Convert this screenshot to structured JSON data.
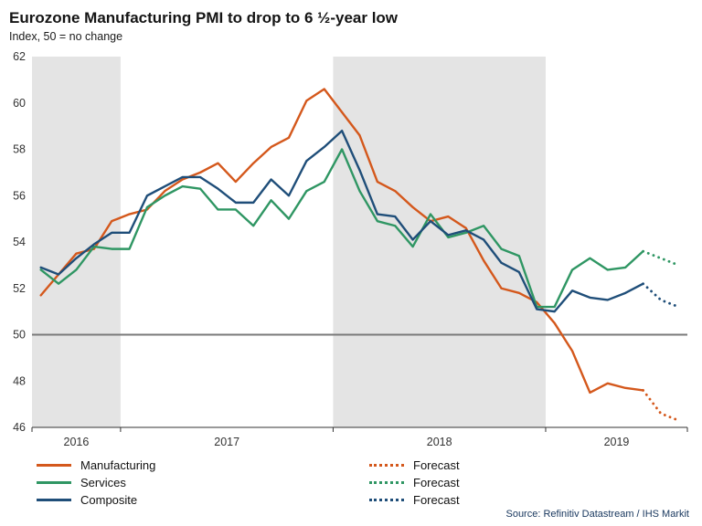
{
  "chart_data": {
    "type": "line",
    "title": "Eurozone Manufacturing PMI to drop to 6 ½-year low",
    "subtitle": "Index, 50 = no change",
    "ylim": [
      46,
      62
    ],
    "yticks": [
      46,
      48,
      50,
      52,
      54,
      56,
      58,
      60,
      62
    ],
    "reference_line": 50,
    "x_start": "2016-08",
    "x_frequency": "monthly",
    "band_color": "#e4e4e4",
    "years": [
      {
        "label": "2016",
        "months": 5,
        "shaded": true
      },
      {
        "label": "2017",
        "months": 12,
        "shaded": false
      },
      {
        "label": "2018",
        "months": 12,
        "shaded": true
      },
      {
        "label": "2019",
        "months": 8,
        "shaded": false
      }
    ],
    "series": [
      {
        "name": "Manufacturing",
        "color": "#d4581c",
        "values": [
          51.7,
          52.6,
          53.5,
          53.7,
          54.9,
          55.2,
          55.4,
          56.2,
          56.7,
          57.0,
          57.4,
          56.6,
          57.4,
          58.1,
          58.5,
          60.1,
          60.6,
          59.6,
          58.6,
          56.6,
          56.2,
          55.5,
          54.9,
          55.1,
          54.6,
          53.2,
          52.0,
          51.8,
          51.4,
          50.5,
          49.3,
          47.5,
          47.9,
          47.7,
          47.6
        ],
        "forecast": [
          46.6,
          46.3
        ]
      },
      {
        "name": "Services",
        "color": "#2f9663",
        "values": [
          52.8,
          52.2,
          52.8,
          53.8,
          53.7,
          53.7,
          55.5,
          56.0,
          56.4,
          56.3,
          55.4,
          55.4,
          54.7,
          55.8,
          55.0,
          56.2,
          56.6,
          58.0,
          56.2,
          54.9,
          54.7,
          53.8,
          55.2,
          54.2,
          54.4,
          54.7,
          53.7,
          53.4,
          51.2,
          51.2,
          52.8,
          53.3,
          52.8,
          52.9,
          53.6
        ],
        "forecast": [
          53.3,
          53.0
        ]
      },
      {
        "name": "Composite",
        "color": "#1f4e79",
        "values": [
          52.9,
          52.6,
          53.3,
          53.9,
          54.4,
          54.4,
          56.0,
          56.4,
          56.8,
          56.8,
          56.3,
          55.7,
          55.7,
          56.7,
          56.0,
          57.5,
          58.1,
          58.8,
          57.1,
          55.2,
          55.1,
          54.1,
          54.9,
          54.3,
          54.5,
          54.1,
          53.1,
          52.7,
          51.1,
          51.0,
          51.9,
          51.6,
          51.5,
          51.8,
          52.2
        ],
        "forecast": [
          51.5,
          51.2
        ]
      }
    ]
  },
  "legend": {
    "series_labels": [
      "Manufacturing",
      "Services",
      "Composite"
    ],
    "forecast_label": "Forecast"
  },
  "source": {
    "text": "Source: Refinitiv Datastream / IHS Markit"
  }
}
